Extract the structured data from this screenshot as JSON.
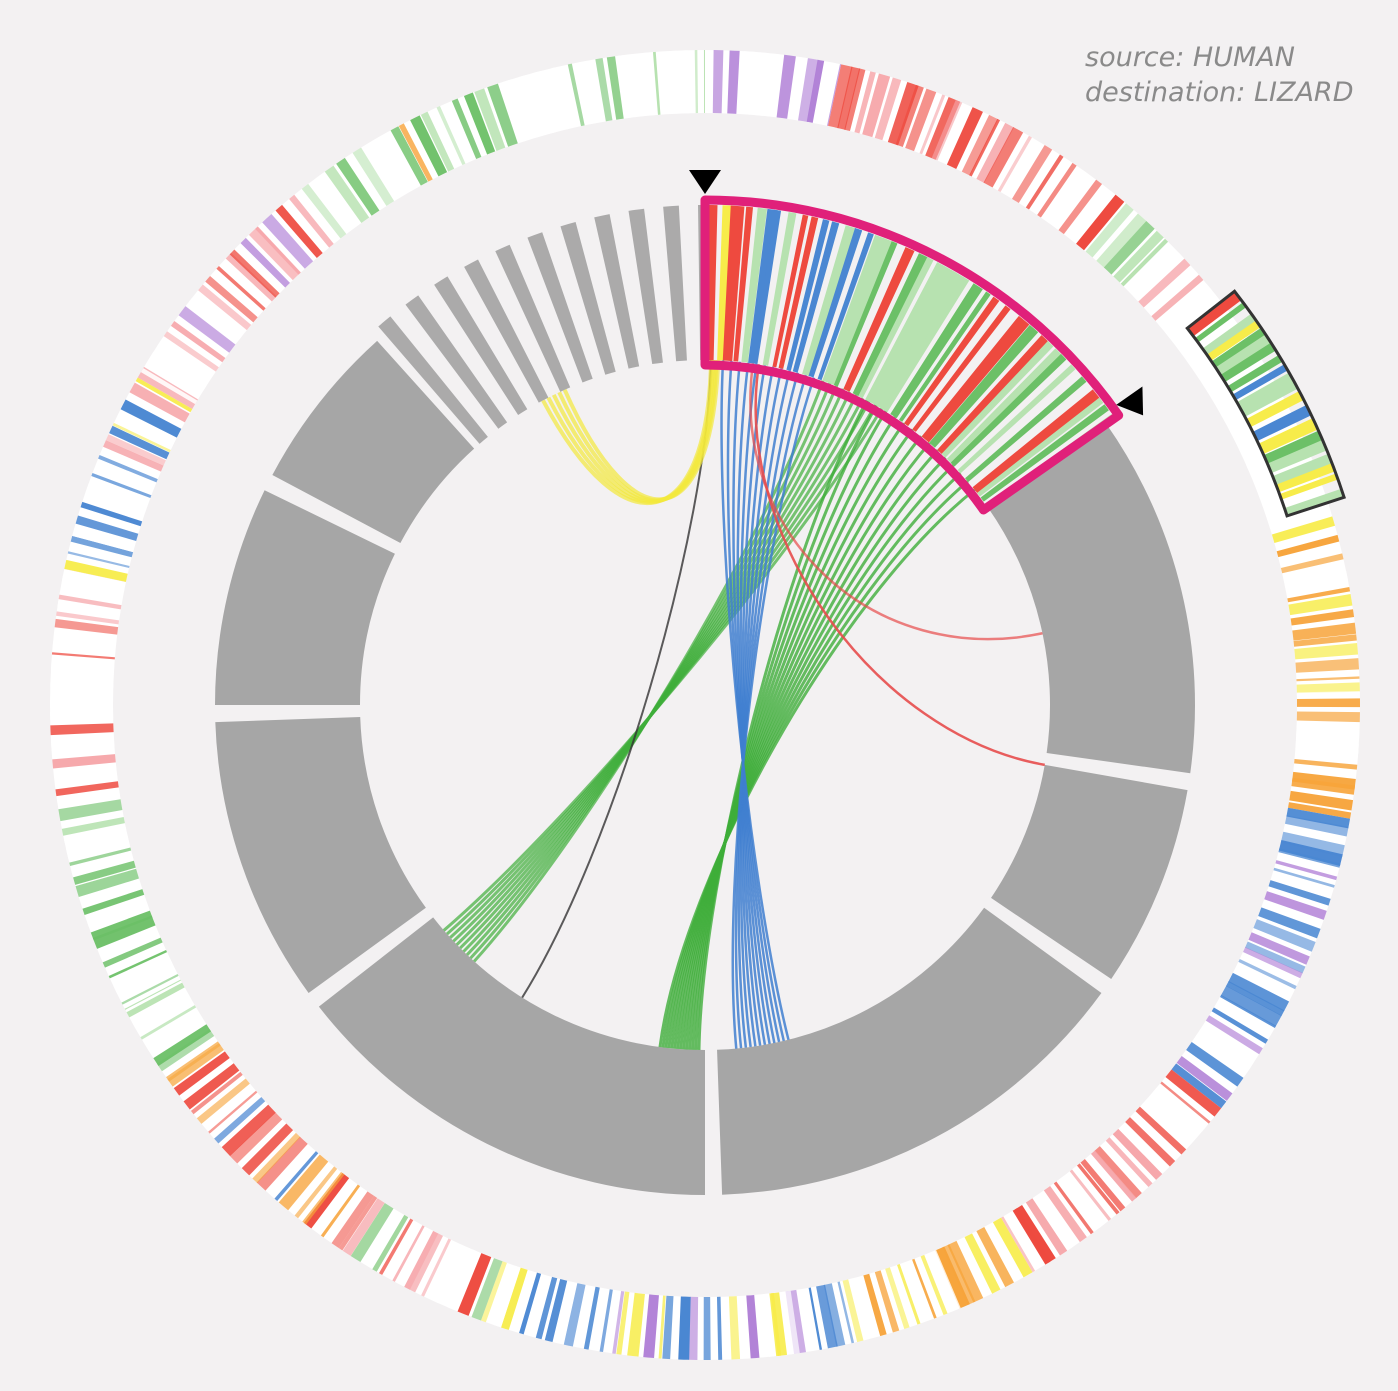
{
  "legend": {
    "source": "source: HUMAN",
    "destination": "destination: LIZARD"
  }
}
